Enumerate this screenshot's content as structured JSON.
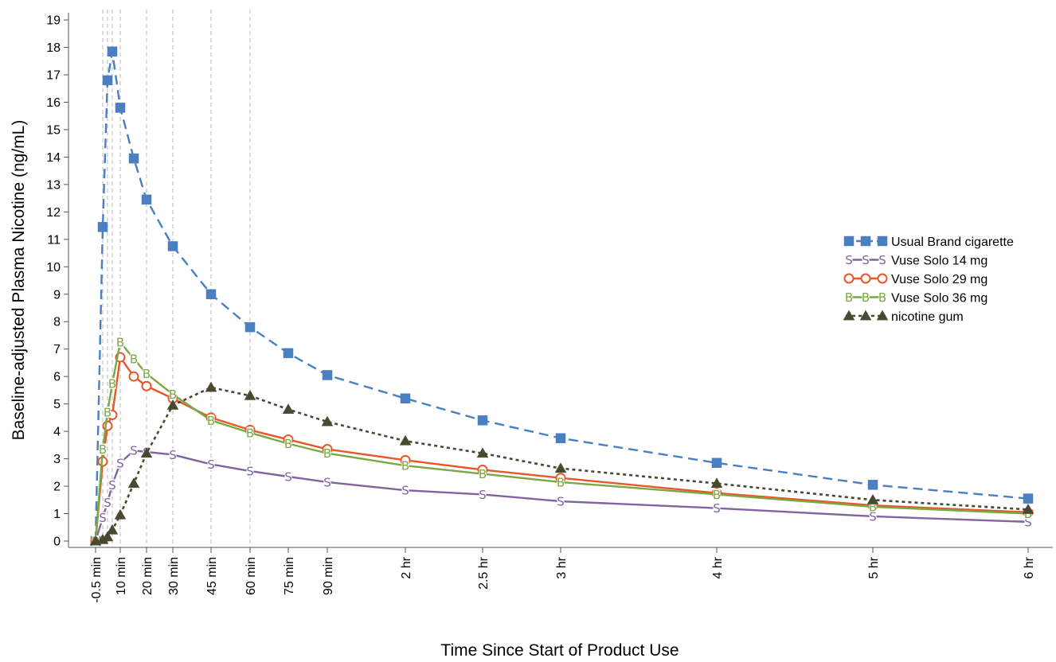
{
  "chart_data": {
    "type": "line",
    "title": "",
    "xlabel": "Time Since Start of Product Use",
    "ylabel": "Baseline-adjusted Plasma Nicotine (ng/mL)",
    "x_unit": "minutes",
    "xlim": [
      -0.5,
      360
    ],
    "ylim": [
      0,
      19
    ],
    "y_ticks": [
      0,
      1,
      2,
      3,
      4,
      5,
      6,
      7,
      8,
      9,
      10,
      11,
      12,
      13,
      14,
      15,
      16,
      17,
      18,
      19
    ],
    "x_ticks": [
      {
        "x": -0.5,
        "label": "-0.5 min"
      },
      {
        "x": 10,
        "label": "10 min"
      },
      {
        "x": 20,
        "label": "20 min"
      },
      {
        "x": 30,
        "label": "30 min"
      },
      {
        "x": 45,
        "label": "45 min"
      },
      {
        "x": 60,
        "label": "60 min"
      },
      {
        "x": 75,
        "label": "75 min"
      },
      {
        "x": 90,
        "label": "90 min"
      },
      {
        "x": 120,
        "label": "2 hr"
      },
      {
        "x": 150,
        "label": "2.5 hr"
      },
      {
        "x": 180,
        "label": "3 hr"
      },
      {
        "x": 240,
        "label": "4 hr"
      },
      {
        "x": 300,
        "label": "5 hr"
      },
      {
        "x": 360,
        "label": "6 hr"
      }
    ],
    "reference_lines_x": [
      2,
      4,
      6,
      10,
      20,
      30,
      45,
      60
    ],
    "legend_position": "right",
    "series": [
      {
        "name": "Usual Brand cigarette",
        "color": "#4a7fc1",
        "line": "dashed",
        "marker": "square-filled",
        "x": [
          -0.5,
          2,
          4,
          6,
          10,
          15,
          20,
          30,
          45,
          60,
          75,
          90,
          120,
          150,
          180,
          240,
          300,
          360
        ],
        "y": [
          0,
          11.45,
          16.8,
          17.85,
          15.8,
          13.95,
          12.45,
          10.75,
          9.0,
          7.8,
          6.85,
          6.05,
          5.2,
          4.4,
          3.75,
          2.85,
          2.05,
          1.55
        ]
      },
      {
        "name": "Vuse Solo 14 mg",
        "color": "#8064a2",
        "line": "solid",
        "marker": "S",
        "x": [
          -0.5,
          2,
          4,
          6,
          10,
          15,
          20,
          30,
          45,
          60,
          75,
          90,
          120,
          150,
          180,
          240,
          300,
          360
        ],
        "y": [
          0,
          0.85,
          1.4,
          2.05,
          2.85,
          3.3,
          3.25,
          3.15,
          2.8,
          2.55,
          2.35,
          2.15,
          1.85,
          1.7,
          1.45,
          1.2,
          0.9,
          0.7
        ]
      },
      {
        "name": "Vuse Solo 29 mg",
        "color": "#e8562a",
        "line": "solid",
        "marker": "circle-open",
        "x": [
          -0.5,
          2,
          4,
          6,
          10,
          15,
          20,
          30,
          45,
          60,
          75,
          90,
          120,
          150,
          180,
          240,
          300,
          360
        ],
        "y": [
          0,
          2.9,
          4.2,
          4.6,
          6.7,
          6.0,
          5.65,
          5.2,
          4.5,
          4.05,
          3.7,
          3.35,
          2.95,
          2.6,
          2.3,
          1.75,
          1.3,
          1.05
        ]
      },
      {
        "name": "Vuse Solo 36 mg",
        "color": "#7aa843",
        "line": "solid",
        "marker": "B",
        "x": [
          -0.5,
          2,
          4,
          6,
          10,
          15,
          20,
          30,
          45,
          60,
          75,
          90,
          120,
          150,
          180,
          240,
          300,
          360
        ],
        "y": [
          0,
          3.35,
          4.7,
          5.75,
          7.25,
          6.65,
          6.1,
          5.35,
          4.4,
          3.95,
          3.55,
          3.2,
          2.75,
          2.45,
          2.15,
          1.7,
          1.25,
          1.0
        ]
      },
      {
        "name": "nicotine gum",
        "color": "#4b4830",
        "line": "dotted",
        "marker": "triangle-filled",
        "x": [
          -0.5,
          2,
          4,
          6,
          10,
          15,
          20,
          30,
          45,
          60,
          75,
          90,
          120,
          150,
          180,
          240,
          300,
          360
        ],
        "y": [
          0,
          0.05,
          0.15,
          0.4,
          0.95,
          2.1,
          3.2,
          4.95,
          5.6,
          5.3,
          4.8,
          4.35,
          3.65,
          3.2,
          2.65,
          2.1,
          1.5,
          1.15
        ]
      }
    ]
  }
}
